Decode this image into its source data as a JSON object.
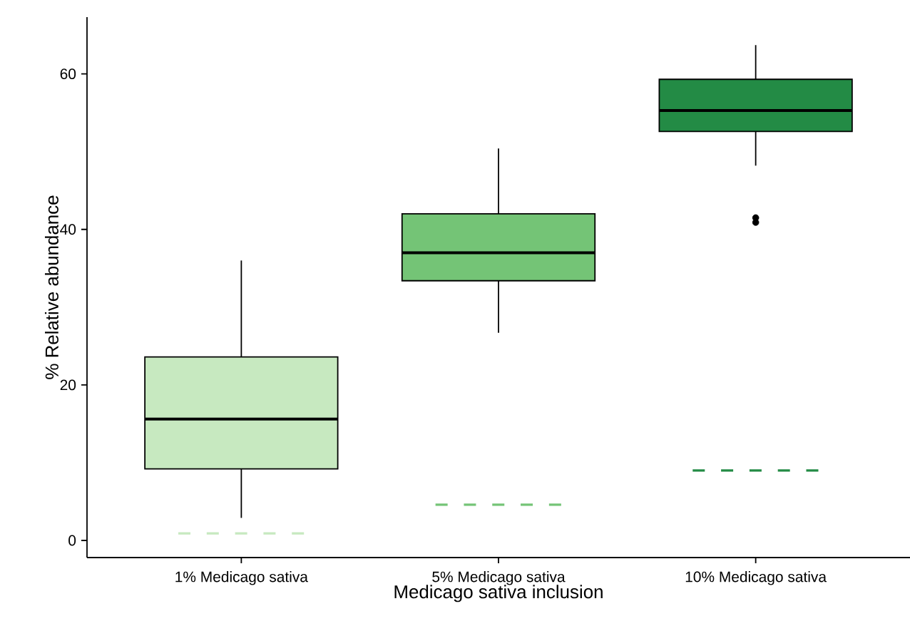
{
  "chart_data": {
    "type": "box",
    "xlabel": "Medicago sativa inclusion",
    "ylabel": "% Relative abundance",
    "categories": [
      "1% Medicago sativa",
      "5% Medicago sativa",
      "10% Medicago sativa"
    ],
    "ylim": [
      -2.2,
      67.3
    ],
    "yticks": [
      0,
      20,
      40,
      60
    ],
    "grid": false,
    "series": [
      {
        "colors": [
          "#c7e9c0",
          "#74c476",
          "#238b45"
        ],
        "boxes": [
          {
            "low": 2.9,
            "q1": 9.2,
            "median": 15.6,
            "q3": 23.6,
            "high": 36.0
          },
          {
            "low": 26.7,
            "q1": 33.4,
            "median": 37.0,
            "q3": 42.0,
            "high": 50.4
          },
          {
            "low": 48.2,
            "q1": 52.6,
            "median": 55.3,
            "q3": 59.3,
            "high": 63.7,
            "outliers": [
              41.5,
              40.9
            ]
          }
        ]
      }
    ],
    "ref_lines": [
      {
        "axis": "y",
        "value": 0.9,
        "color": "#c7e9c0",
        "line_style": "dashed"
      },
      {
        "axis": "y",
        "value": 4.6,
        "color": "#74c476",
        "line_style": "dashed"
      },
      {
        "axis": "y",
        "value": 9.0,
        "color": "#238b45",
        "line_style": "dashed"
      }
    ]
  }
}
